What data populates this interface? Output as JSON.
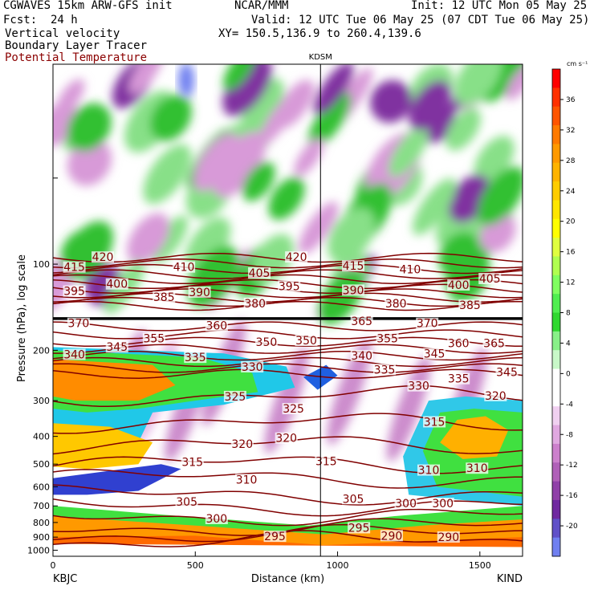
{
  "header": {
    "model": "CGWAVES 15km ARW-GFS init",
    "org": "NCAR/MMM",
    "init": "Init: 12 UTC Mon 05 May 25",
    "fcst": "Fcst:  24 h",
    "valid": "Valid: 12 UTC Tue 06 May 25 (07 CDT Tue 06 May 25)",
    "field1": "Vertical velocity",
    "xy": "XY= 150.5,136.9 to 260.4,139.6",
    "field2": "Boundary Layer Tracer",
    "field3": "Potential Temperature"
  },
  "colors": {
    "theta": "#800000",
    "up_strong": "#ff0000",
    "down_strong": "#7070ff"
  },
  "chart_data": {
    "type": "heatmap",
    "title": "CGWAVES 15km ARW-GFS init",
    "xlabel": "Distance (km)",
    "ylabel": "Pressure (hPa), log scale",
    "y_scale": "log",
    "xlim": [
      0,
      1650
    ],
    "ylim": [
      1050,
      20
    ],
    "x_ticks": [
      0,
      500,
      1000,
      1500
    ],
    "y_ticks": [
      100,
      200,
      300,
      400,
      500,
      600,
      700,
      800,
      900,
      1000
    ],
    "x_end_labels": {
      "left": "KBJC",
      "right": "KIND"
    },
    "marker": {
      "label": "KDSM",
      "x": 940
    },
    "tropopause_pressure": 155,
    "colorbar": {
      "unit": "cm s⁻¹",
      "ticks": [
        36,
        32,
        28,
        24,
        20,
        16,
        12,
        8,
        4,
        0,
        -4,
        -8,
        -12,
        -16,
        -20
      ],
      "colors": [
        "#ff0000",
        "#ff3000",
        "#ff5500",
        "#ff7a00",
        "#ff9900",
        "#ffb300",
        "#ffcc00",
        "#ffe600",
        "#ffff00",
        "#e0ff40",
        "#b0ff50",
        "#80ff60",
        "#50ee50",
        "#30d830",
        "#88f088",
        "#c8f8c8",
        "#ffffff",
        "#ffffff",
        "#f0d0f0",
        "#e0a8e0",
        "#cc80cc",
        "#b060b8",
        "#9040a8",
        "#7028a0",
        "#6050c8",
        "#7080f0"
      ]
    },
    "theta_labels": [
      {
        "v": "420",
        "x": 175,
        "p": 95
      },
      {
        "v": "420",
        "x": 855,
        "p": 95
      },
      {
        "v": "415",
        "x": 75,
        "p": 103
      },
      {
        "v": "410",
        "x": 460,
        "p": 103
      },
      {
        "v": "405",
        "x": 725,
        "p": 108
      },
      {
        "v": "415",
        "x": 1055,
        "p": 102
      },
      {
        "v": "410",
        "x": 1255,
        "p": 105
      },
      {
        "v": "405",
        "x": 1535,
        "p": 113
      },
      {
        "v": "400",
        "x": 225,
        "p": 118
      },
      {
        "v": "395",
        "x": 75,
        "p": 125
      },
      {
        "v": "385",
        "x": 390,
        "p": 131
      },
      {
        "v": "390",
        "x": 515,
        "p": 126
      },
      {
        "v": "395",
        "x": 830,
        "p": 120
      },
      {
        "v": "390",
        "x": 1055,
        "p": 124
      },
      {
        "v": "400",
        "x": 1425,
        "p": 119
      },
      {
        "v": "380",
        "x": 710,
        "p": 138
      },
      {
        "v": "380",
        "x": 1205,
        "p": 138
      },
      {
        "v": "385",
        "x": 1465,
        "p": 140
      },
      {
        "v": "370",
        "x": 90,
        "p": 162
      },
      {
        "v": "360",
        "x": 575,
        "p": 165
      },
      {
        "v": "365",
        "x": 1085,
        "p": 159
      },
      {
        "v": "370",
        "x": 1315,
        "p": 162
      },
      {
        "v": "355",
        "x": 355,
        "p": 183
      },
      {
        "v": "350",
        "x": 750,
        "p": 188
      },
      {
        "v": "350",
        "x": 890,
        "p": 186
      },
      {
        "v": "355",
        "x": 1175,
        "p": 183
      },
      {
        "v": "360",
        "x": 1425,
        "p": 190
      },
      {
        "v": "365",
        "x": 1550,
        "p": 190
      },
      {
        "v": "345",
        "x": 225,
        "p": 196
      },
      {
        "v": "340",
        "x": 75,
        "p": 208
      },
      {
        "v": "340",
        "x": 1085,
        "p": 210
      },
      {
        "v": "345",
        "x": 1340,
        "p": 207
      },
      {
        "v": "335",
        "x": 500,
        "p": 213
      },
      {
        "v": "330",
        "x": 700,
        "p": 230
      },
      {
        "v": "335",
        "x": 1165,
        "p": 235
      },
      {
        "v": "345",
        "x": 1595,
        "p": 240
      },
      {
        "v": "335",
        "x": 1425,
        "p": 253
      },
      {
        "v": "330",
        "x": 1285,
        "p": 268
      },
      {
        "v": "325",
        "x": 640,
        "p": 292
      },
      {
        "v": "325",
        "x": 845,
        "p": 322
      },
      {
        "v": "320",
        "x": 1555,
        "p": 290
      },
      {
        "v": "315",
        "x": 1340,
        "p": 358
      },
      {
        "v": "320",
        "x": 665,
        "p": 428
      },
      {
        "v": "320",
        "x": 820,
        "p": 408
      },
      {
        "v": "315",
        "x": 490,
        "p": 495
      },
      {
        "v": "315",
        "x": 960,
        "p": 492
      },
      {
        "v": "310",
        "x": 680,
        "p": 570
      },
      {
        "v": "310",
        "x": 1320,
        "p": 528
      },
      {
        "v": "310",
        "x": 1490,
        "p": 520
      },
      {
        "v": "305",
        "x": 470,
        "p": 680
      },
      {
        "v": "305",
        "x": 1055,
        "p": 665
      },
      {
        "v": "300",
        "x": 1240,
        "p": 690
      },
      {
        "v": "300",
        "x": 1370,
        "p": 690
      },
      {
        "v": "300",
        "x": 575,
        "p": 780
      },
      {
        "v": "295",
        "x": 780,
        "p": 900
      },
      {
        "v": "295",
        "x": 1075,
        "p": 840
      },
      {
        "v": "290",
        "x": 1190,
        "p": 895
      },
      {
        "v": "290",
        "x": 1390,
        "p": 905
      }
    ]
  }
}
